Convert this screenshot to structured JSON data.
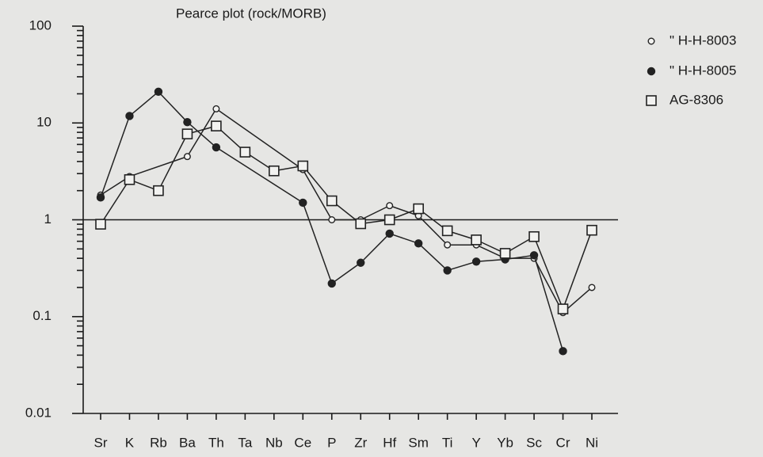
{
  "chart_data": {
    "type": "line",
    "title": "Pearce plot (rock/MORB)",
    "categories": [
      "Sr",
      "K",
      "Rb",
      "Ba",
      "Th",
      "Ta",
      "Nb",
      "Ce",
      "P",
      "Zr",
      "Hf",
      "Sm",
      "Ti",
      "Y",
      "Yb",
      "Sc",
      "Cr",
      "Ni"
    ],
    "series": [
      {
        "name": "\" H-H-8003",
        "color": "#222222",
        "marker": "open_circle",
        "values": [
          1.8,
          2.8,
          null,
          4.5,
          14,
          null,
          null,
          3.3,
          1.0,
          1.0,
          1.4,
          1.1,
          0.55,
          0.55,
          0.4,
          0.4,
          0.11,
          0.2
        ]
      },
      {
        "name": "\" H-H-8005",
        "color": "#222222",
        "marker": "filled_circle",
        "values": [
          1.7,
          11.8,
          21,
          10.2,
          5.6,
          null,
          null,
          1.5,
          0.22,
          0.36,
          0.72,
          0.57,
          0.3,
          0.37,
          0.39,
          0.43,
          0.044,
          null
        ]
      },
      {
        "name": "AG-8306",
        "color": "#222222",
        "marker": "open_square",
        "values": [
          0.9,
          2.6,
          2.0,
          7.7,
          9.3,
          5.0,
          3.2,
          3.6,
          1.57,
          0.91,
          1.0,
          1.3,
          0.77,
          0.62,
          0.45,
          0.67,
          0.12,
          0.78
        ]
      }
    ],
    "ylim": [
      0.01,
      100
    ],
    "yticks": [
      0.01,
      0.1,
      1,
      10,
      100
    ],
    "log_y": true,
    "hline": 1,
    "legend": "top-right"
  }
}
